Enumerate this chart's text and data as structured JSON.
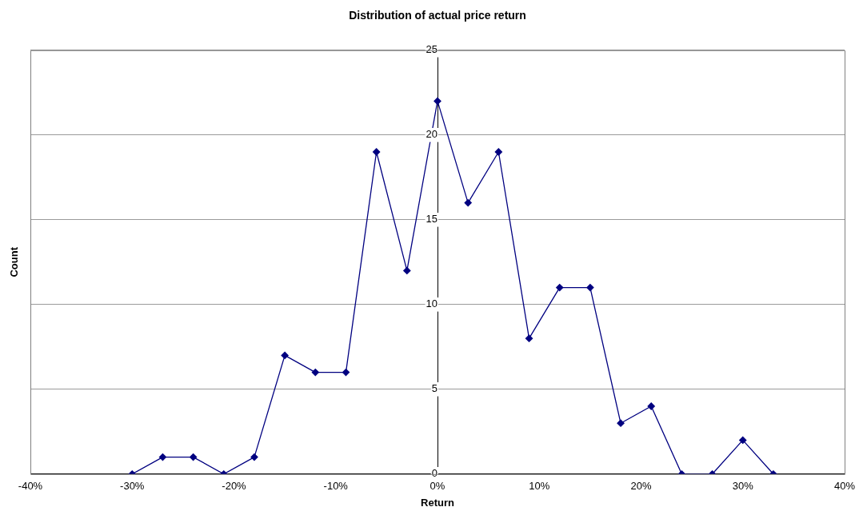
{
  "chart_data": {
    "type": "line",
    "title": "Distribution of actual price return",
    "xlabel": "Return",
    "ylabel": "Count",
    "x": [
      -30,
      -27,
      -24,
      -21,
      -18,
      -15,
      -12,
      -9,
      -6,
      -3,
      0,
      3,
      6,
      9,
      12,
      15,
      18,
      21,
      24,
      27,
      30,
      33
    ],
    "series": [
      {
        "color": "#000080",
        "values": [
          0,
          1,
          1,
          0,
          1,
          7,
          6,
          6,
          19,
          12,
          22,
          16,
          19,
          8,
          11,
          11,
          3,
          4,
          0,
          0,
          2,
          0
        ]
      }
    ],
    "xlim": [
      -40,
      40
    ],
    "xticks": [
      {
        "value": -40,
        "label": "-40%"
      },
      {
        "value": -30,
        "label": "-30%"
      },
      {
        "value": -20,
        "label": "-20%"
      },
      {
        "value": -10,
        "label": "-10%"
      },
      {
        "value": 0,
        "label": "0%"
      },
      {
        "value": 10,
        "label": "10%"
      },
      {
        "value": 20,
        "label": "20%"
      },
      {
        "value": 30,
        "label": "30%"
      },
      {
        "value": 40,
        "label": "40%"
      }
    ],
    "ylim": [
      0,
      25
    ],
    "yticks": [
      0,
      5,
      10,
      15,
      20,
      25
    ],
    "grid": "y",
    "legend": false,
    "marker": "diamond",
    "line_style": "solid"
  }
}
